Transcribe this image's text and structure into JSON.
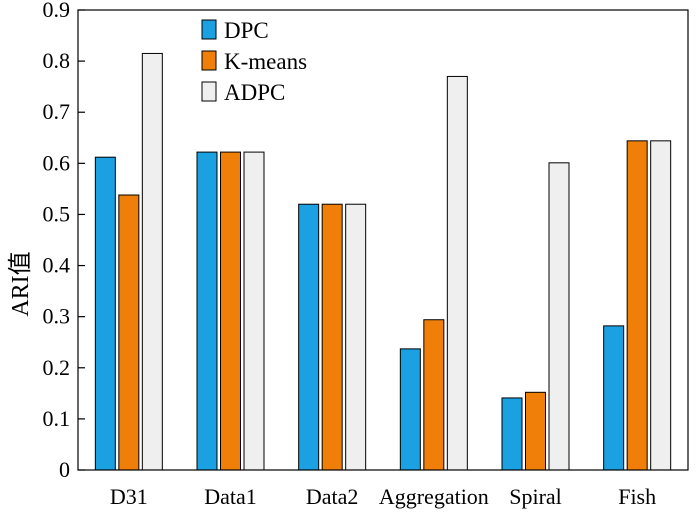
{
  "chart_data": {
    "type": "bar",
    "title": "",
    "xlabel": "",
    "ylabel": "ARI值",
    "ylim": [
      0,
      0.9
    ],
    "yticks": [
      "0",
      "0.1",
      "0.2",
      "0.3",
      "0.4",
      "0.5",
      "0.6",
      "0.7",
      "0.8",
      "0.9"
    ],
    "categories": [
      "D31",
      "Data1",
      "Data2",
      "Aggregation",
      "Spiral",
      "Fish"
    ],
    "series": [
      {
        "name": "DPC",
        "color": "#1ba1e2",
        "values": [
          0.612,
          0.622,
          0.52,
          0.237,
          0.141,
          0.282
        ]
      },
      {
        "name": "K-means",
        "color": "#f07f09",
        "values": [
          0.538,
          0.622,
          0.52,
          0.294,
          0.152,
          0.644
        ]
      },
      {
        "name": "ADPC",
        "color": "#efefef",
        "values": [
          0.815,
          0.622,
          0.52,
          0.77,
          0.601,
          0.644
        ]
      }
    ],
    "legend": "top-left",
    "grid": false
  }
}
